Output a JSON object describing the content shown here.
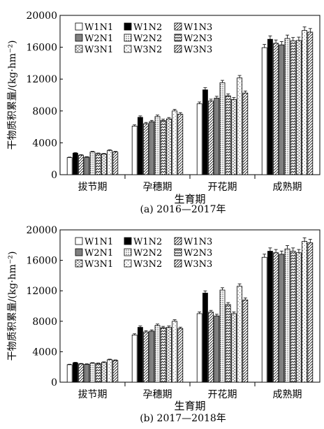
{
  "chart_data": [
    {
      "type": "bar",
      "caption": "(a) 2016—2017年",
      "xlabel": "生育期",
      "ylabel": "干物质积累量/(kg·hm⁻²)",
      "ylim": [
        0,
        20000
      ],
      "yticks": [
        "0",
        "4000",
        "8000",
        "12000",
        "16000",
        "20000"
      ],
      "categories": [
        "拔节期",
        "孕穗期",
        "开花期",
        "成熟期"
      ],
      "legend_position": "top-left",
      "series": [
        {
          "name": "W1N1",
          "values": [
            2150,
            6100,
            8900,
            15950
          ]
        },
        {
          "name": "W1N2",
          "values": [
            2700,
            7200,
            10650,
            17000
          ]
        },
        {
          "name": "W1N3",
          "values": [
            2450,
            6400,
            9250,
            16500
          ]
        },
        {
          "name": "W2N1",
          "values": [
            2200,
            6650,
            9600,
            16300
          ]
        },
        {
          "name": "W2N2",
          "values": [
            2850,
            7300,
            11550,
            17100
          ]
        },
        {
          "name": "W2N3",
          "values": [
            2650,
            6800,
            9900,
            16800
          ]
        },
        {
          "name": "W3N1",
          "values": [
            2600,
            7000,
            9450,
            16850
          ]
        },
        {
          "name": "W3N2",
          "values": [
            3050,
            8000,
            12150,
            18100
          ]
        },
        {
          "name": "W3N3",
          "values": [
            2850,
            7600,
            10250,
            17900
          ]
        }
      ]
    },
    {
      "type": "bar",
      "caption": "(b) 2017—2018年",
      "xlabel": "生育期",
      "ylabel": "干物质积累量/(kg·hm⁻²)",
      "ylim": [
        0,
        20000
      ],
      "yticks": [
        "0",
        "4000",
        "8000",
        "12000",
        "16000",
        "20000"
      ],
      "categories": [
        "拔节期",
        "孕穗期",
        "开花期",
        "成熟期"
      ],
      "legend_position": "top-left",
      "series": [
        {
          "name": "W1N1",
          "values": [
            2300,
            6200,
            9000,
            16400
          ]
        },
        {
          "name": "W1N2",
          "values": [
            2550,
            7200,
            11700,
            17200
          ]
        },
        {
          "name": "W1N3",
          "values": [
            2400,
            6600,
            9200,
            17000
          ]
        },
        {
          "name": "W2N1",
          "values": [
            2350,
            6700,
            8700,
            16800
          ]
        },
        {
          "name": "W2N2",
          "values": [
            2500,
            7450,
            12100,
            17500
          ]
        },
        {
          "name": "W2N3",
          "values": [
            2450,
            7150,
            10200,
            17200
          ]
        },
        {
          "name": "W3N1",
          "values": [
            2600,
            7200,
            9000,
            17000
          ]
        },
        {
          "name": "W3N2",
          "values": [
            2950,
            8000,
            12600,
            18500
          ]
        },
        {
          "name": "W3N3",
          "values": [
            2850,
            7050,
            10800,
            18300
          ]
        }
      ]
    }
  ]
}
